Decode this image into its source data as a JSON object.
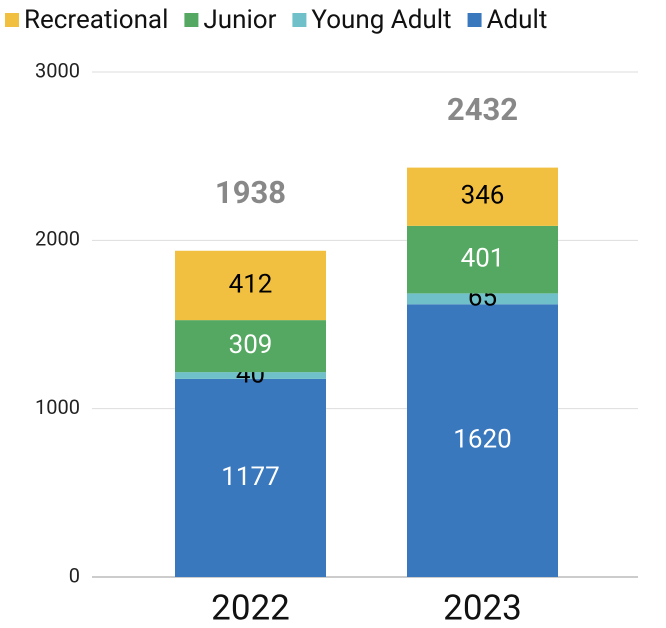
{
  "chart_data": {
    "type": "stacked_bar",
    "categories": [
      "2022",
      "2023"
    ],
    "series": [
      {
        "name": "Adult",
        "color": "#3a78bd",
        "label_color": "#ffffff",
        "values": [
          1177,
          1620
        ]
      },
      {
        "name": "Young Adult",
        "color": "#6fc0c8",
        "label_color": "#000000",
        "values": [
          40,
          65
        ]
      },
      {
        "name": "Junior",
        "color": "#55a861",
        "label_color": "#ffffff",
        "values": [
          309,
          401
        ]
      },
      {
        "name": "Recreational",
        "color": "#f1c040",
        "label_color": "#000000",
        "values": [
          412,
          346
        ]
      }
    ],
    "totals": [
      1938,
      2432
    ],
    "ylim": [
      0,
      3000
    ],
    "yticks": [
      0,
      1000,
      2000,
      3000
    ],
    "grid": true,
    "legend": "top"
  }
}
